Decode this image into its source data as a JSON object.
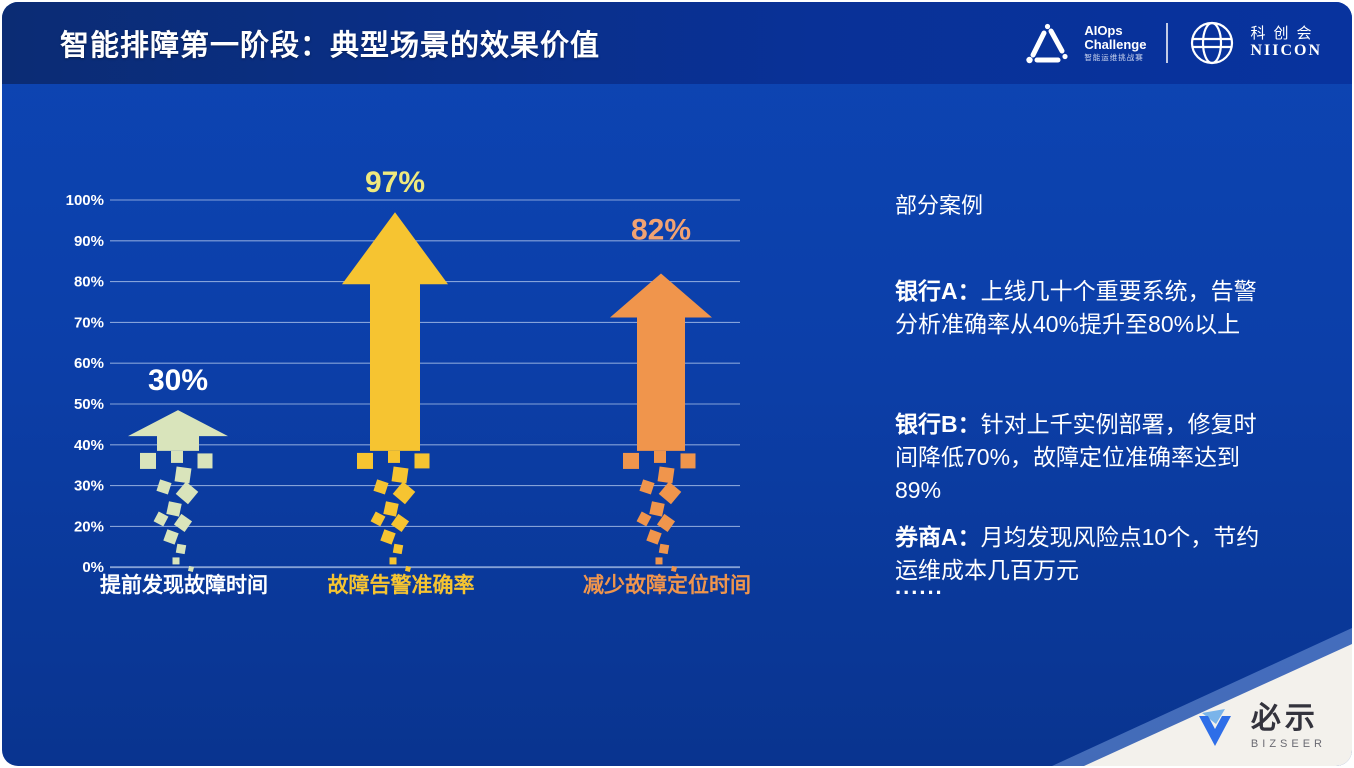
{
  "header": {
    "title": "智能排障第一阶段：典型场景的效果价值",
    "logos": {
      "aiops": {
        "line1": "AIOps",
        "line2": "Challenge",
        "subtitle": "智能运维挑战赛"
      },
      "niicon": {
        "cn": "科创会",
        "en": "NIICON"
      }
    }
  },
  "chart_data": {
    "type": "bar",
    "variant": "dissolving-arrow-bars",
    "title": "",
    "categories": [
      "提前发现故障时间",
      "故障告警准确率",
      "减少故障定位时间"
    ],
    "values": [
      30,
      97,
      82
    ],
    "value_labels": [
      "30%",
      "97%",
      "82%"
    ],
    "ytick_labels": [
      "100%",
      "90%",
      "80%",
      "70%",
      "60%",
      "50%",
      "40%",
      "30%",
      "20%",
      "0%"
    ],
    "ylim": [
      0,
      100
    ],
    "grid": true,
    "legend": "none",
    "colors": {
      "arrows": [
        "#d9e4bb",
        "#f6c431",
        "#f0954c"
      ],
      "value_labels": [
        "#ffffff",
        "#efe97d",
        "#f2a272"
      ],
      "category_labels": [
        "#ffffff",
        "#f6c431",
        "#f0954c"
      ],
      "gridline": "rgba(185,205,240,0.7)",
      "ytick_text": "#ffffff"
    },
    "layout_hints": {
      "tip_pcts": [
        48.5,
        97,
        82
      ],
      "base_pct": 38.5,
      "centers_x": [
        118,
        335,
        601
      ],
      "head_w": [
        100,
        106,
        102
      ],
      "head_h": [
        26,
        72,
        44
      ],
      "shaft_w": [
        42,
        50,
        48
      ],
      "label_dy": [
        -20,
        -20,
        -34
      ]
    }
  },
  "cases": {
    "heading": "部分案例",
    "items": [
      {
        "name": "银行A：",
        "text": "上线几十个重要系统，告警分析准确率从40%提升至80%以上"
      },
      {
        "name": "银行B：",
        "text": "针对上千实例部署，修复时间降低70%，故障定位准确率达到89%"
      },
      {
        "name": "券商A：",
        "text": "月均发现风险点10个，节约运维成本几百万元"
      }
    ],
    "ellipsis": "......"
  },
  "footer": {
    "brand_cn": "必示",
    "brand_en": "BIZSEER"
  }
}
